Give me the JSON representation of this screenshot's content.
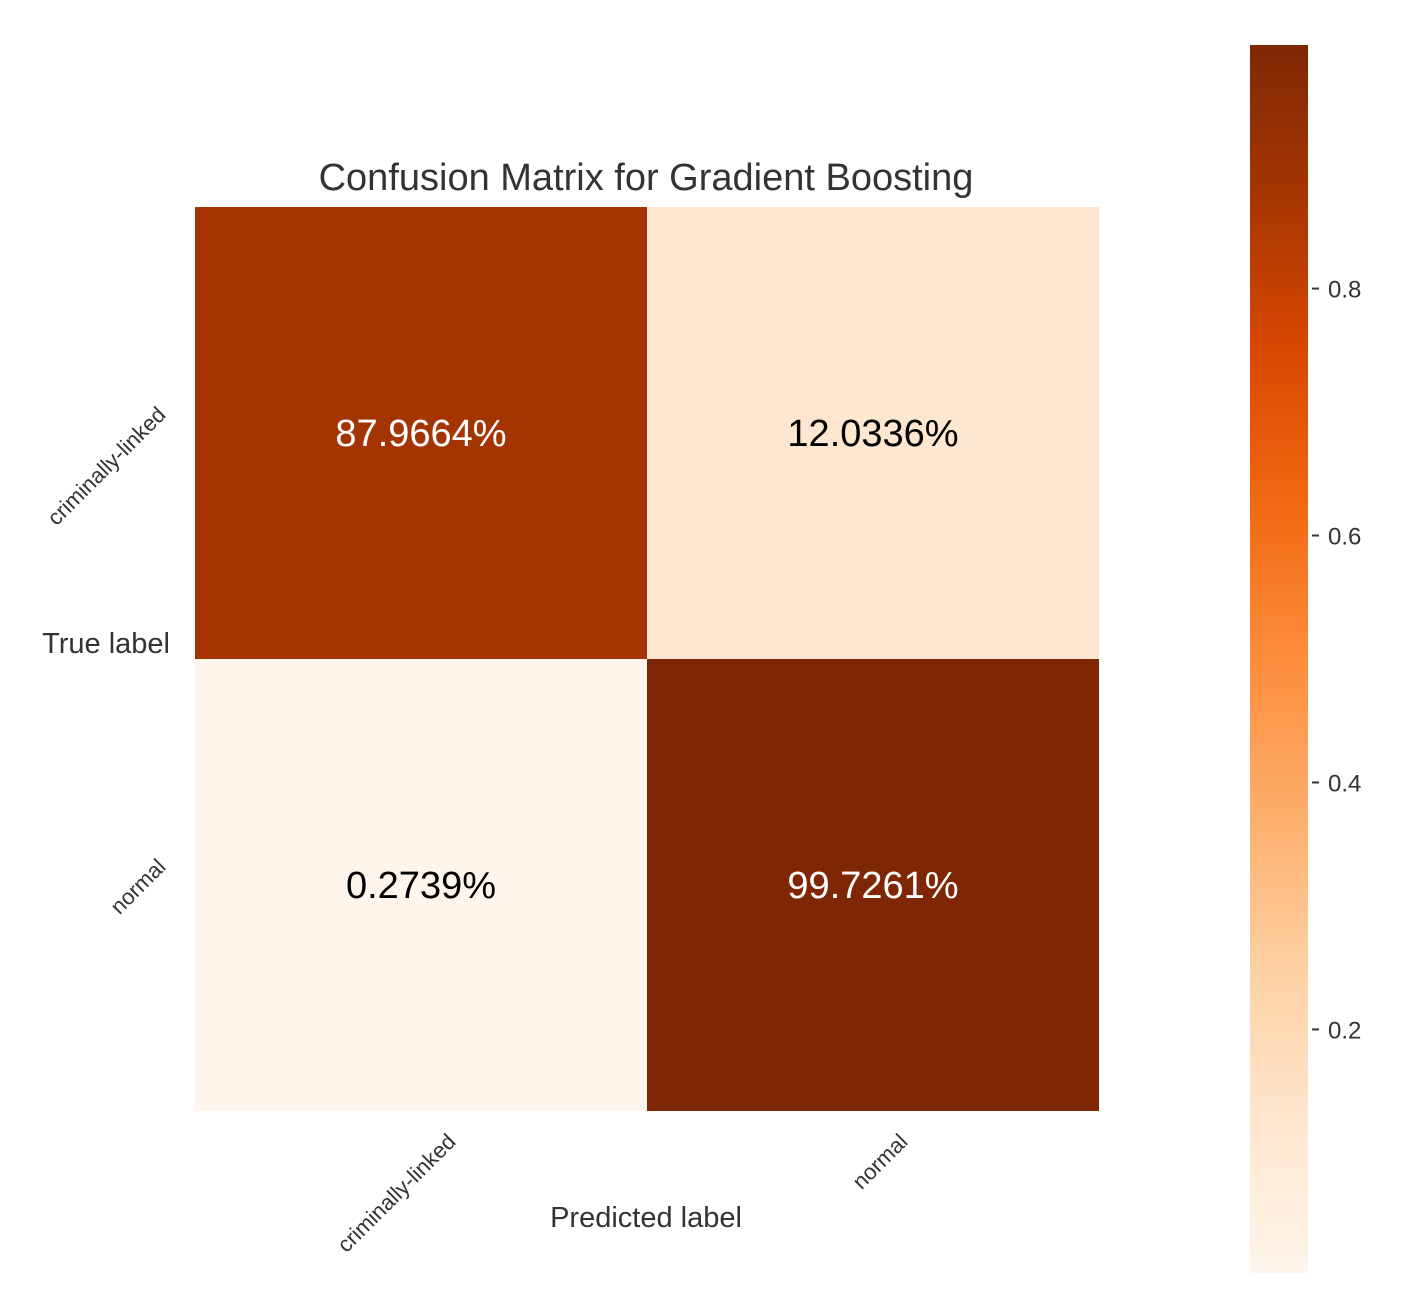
{
  "chart_data": {
    "type": "heatmap",
    "title": "Confusion Matrix for Gradient Boosting",
    "xlabel": "Predicted label",
    "ylabel": "True label",
    "x_categories": [
      "criminally-linked",
      "normal"
    ],
    "y_categories": [
      "criminally-linked",
      "normal"
    ],
    "values": [
      [
        0.879664,
        0.120336
      ],
      [
        0.002739,
        0.997261
      ]
    ],
    "cell_labels": [
      [
        "87.9664%",
        "12.0336%"
      ],
      [
        "0.2739%",
        "99.7261%"
      ]
    ],
    "colormap": "Oranges",
    "colorbar": {
      "range": [
        0.002739,
        0.997261
      ],
      "ticks": [
        0.2,
        0.4,
        0.6,
        0.8
      ],
      "tick_labels": [
        "0.2",
        "0.4",
        "0.6",
        "0.8"
      ]
    },
    "grid": false
  }
}
